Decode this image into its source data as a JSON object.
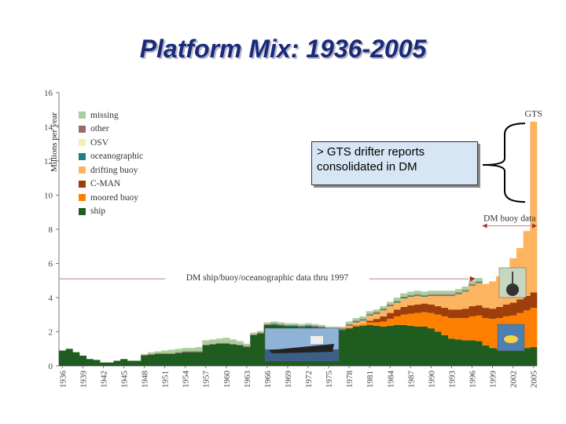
{
  "title": "Platform Mix: 1936-2005",
  "note": "> GTS drifter reports consolidated in DM",
  "chart_data": {
    "type": "area",
    "stacked": true,
    "ylabel": "Millions per year",
    "xlabel": "",
    "ylim": [
      0,
      16
    ],
    "yticks": [
      0,
      2,
      4,
      6,
      8,
      10,
      12,
      14,
      16
    ],
    "xticks": [
      "1936",
      "1939",
      "1942",
      "1945",
      "1948",
      "1951",
      "1954",
      "1957",
      "1960",
      "1963",
      "1966",
      "1969",
      "1972",
      "1975",
      "1978",
      "1981",
      "1984",
      "1987",
      "1990",
      "1993",
      "1996",
      "1999",
      "2002",
      "2005"
    ],
    "years": [
      1936,
      1937,
      1938,
      1939,
      1940,
      1941,
      1942,
      1943,
      1944,
      1945,
      1946,
      1947,
      1948,
      1949,
      1950,
      1951,
      1952,
      1953,
      1954,
      1955,
      1956,
      1957,
      1958,
      1959,
      1960,
      1961,
      1962,
      1963,
      1964,
      1965,
      1966,
      1967,
      1968,
      1969,
      1970,
      1971,
      1972,
      1973,
      1974,
      1975,
      1976,
      1977,
      1978,
      1979,
      1980,
      1981,
      1982,
      1983,
      1984,
      1985,
      1986,
      1987,
      1988,
      1989,
      1990,
      1991,
      1992,
      1993,
      1994,
      1995,
      1996,
      1997,
      1998,
      1999,
      2000,
      2001,
      2002,
      2003,
      2004,
      2005
    ],
    "series": [
      {
        "name": "ship",
        "color": "#1f5c1f",
        "values": [
          0.9,
          1.0,
          0.8,
          0.6,
          0.4,
          0.35,
          0.2,
          0.2,
          0.3,
          0.4,
          0.3,
          0.3,
          0.6,
          0.65,
          0.7,
          0.7,
          0.7,
          0.75,
          0.8,
          0.8,
          0.8,
          1.2,
          1.25,
          1.3,
          1.3,
          1.25,
          1.2,
          1.1,
          1.8,
          1.9,
          2.4,
          2.4,
          2.35,
          2.3,
          2.3,
          2.25,
          2.3,
          2.25,
          2.2,
          2.1,
          2.1,
          2.1,
          2.2,
          2.3,
          2.35,
          2.4,
          2.35,
          2.3,
          2.35,
          2.4,
          2.4,
          2.35,
          2.3,
          2.3,
          2.2,
          2.0,
          1.8,
          1.6,
          1.55,
          1.5,
          1.5,
          1.45,
          1.2,
          1.05,
          1.0,
          1.0,
          0.95,
          1.0,
          1.05,
          1.1
        ]
      },
      {
        "name": "moored buoy",
        "color": "#ff8000",
        "values": [
          0,
          0,
          0,
          0,
          0,
          0,
          0,
          0,
          0,
          0,
          0,
          0,
          0,
          0,
          0,
          0,
          0,
          0,
          0,
          0,
          0,
          0,
          0,
          0,
          0,
          0,
          0,
          0,
          0,
          0,
          0,
          0,
          0,
          0,
          0,
          0,
          0,
          0,
          0,
          0,
          0,
          0,
          0.05,
          0.1,
          0.1,
          0.15,
          0.2,
          0.3,
          0.4,
          0.5,
          0.6,
          0.7,
          0.8,
          0.85,
          0.9,
          1.0,
          1.1,
          1.2,
          1.25,
          1.3,
          1.4,
          1.5,
          1.6,
          1.7,
          1.8,
          1.9,
          2.0,
          2.1,
          2.2,
          2.3
        ]
      },
      {
        "name": "C-MAN",
        "color": "#9e3e0a",
        "values": [
          0,
          0,
          0,
          0,
          0,
          0,
          0,
          0,
          0,
          0,
          0,
          0,
          0,
          0,
          0,
          0,
          0,
          0,
          0,
          0,
          0,
          0,
          0,
          0,
          0,
          0,
          0,
          0,
          0,
          0,
          0,
          0,
          0,
          0,
          0,
          0,
          0,
          0,
          0,
          0,
          0,
          0,
          0,
          0,
          0,
          0.1,
          0.2,
          0.3,
          0.35,
          0.4,
          0.45,
          0.5,
          0.5,
          0.5,
          0.5,
          0.5,
          0.5,
          0.5,
          0.5,
          0.55,
          0.6,
          0.6,
          0.6,
          0.6,
          0.65,
          0.7,
          0.75,
          0.8,
          0.85,
          0.9
        ]
      },
      {
        "name": "drifting buoy",
        "color": "#fdb460",
        "values": [
          0,
          0,
          0,
          0,
          0,
          0,
          0,
          0,
          0,
          0,
          0,
          0,
          0,
          0,
          0,
          0,
          0,
          0,
          0,
          0,
          0,
          0,
          0,
          0,
          0,
          0,
          0,
          0,
          0,
          0,
          0,
          0,
          0,
          0,
          0,
          0,
          0,
          0,
          0,
          0,
          0,
          0,
          0.1,
          0.15,
          0.2,
          0.3,
          0.3,
          0.35,
          0.4,
          0.4,
          0.5,
          0.5,
          0.5,
          0.4,
          0.5,
          0.6,
          0.7,
          0.8,
          0.9,
          1.0,
          1.2,
          1.3,
          1.4,
          1.6,
          1.8,
          2.0,
          2.6,
          3.0,
          3.8,
          10.0
        ]
      },
      {
        "name": "oceanographic",
        "color": "#1e8080",
        "values": [
          0,
          0,
          0,
          0,
          0,
          0,
          0,
          0,
          0,
          0,
          0,
          0,
          0,
          0,
          0,
          0,
          0,
          0,
          0,
          0,
          0,
          0,
          0,
          0,
          0,
          0,
          0,
          0,
          0,
          0,
          0,
          0.05,
          0.05,
          0.05,
          0.05,
          0.05,
          0.05,
          0.05,
          0.05,
          0.05,
          0.05,
          0.05,
          0.05,
          0.05,
          0.05,
          0.05,
          0.05,
          0.05,
          0.05,
          0.05,
          0.05,
          0.05,
          0.05,
          0.05,
          0.05,
          0.05,
          0.05,
          0.05,
          0.05,
          0.05,
          0.05,
          0.05,
          0,
          0,
          0,
          0,
          0,
          0,
          0,
          0
        ]
      },
      {
        "name": "OSV",
        "color": "#f2f2b0",
        "values": [
          0,
          0,
          0,
          0,
          0,
          0,
          0,
          0,
          0,
          0,
          0,
          0,
          0,
          0,
          0,
          0,
          0,
          0,
          0,
          0,
          0,
          0,
          0,
          0,
          0,
          0,
          0,
          0,
          0,
          0,
          0,
          0,
          0,
          0,
          0,
          0,
          0,
          0,
          0,
          0,
          0,
          0,
          0,
          0,
          0,
          0,
          0,
          0,
          0,
          0,
          0,
          0,
          0,
          0,
          0,
          0,
          0,
          0,
          0,
          0,
          0,
          0,
          0,
          0,
          0,
          0,
          0,
          0,
          0,
          0
        ]
      },
      {
        "name": "other",
        "color": "#9b6b6b",
        "values": [
          0,
          0,
          0,
          0,
          0,
          0,
          0,
          0,
          0,
          0,
          0,
          0,
          0.05,
          0.05,
          0.05,
          0.05,
          0.05,
          0.05,
          0.05,
          0.05,
          0.05,
          0.05,
          0.05,
          0.05,
          0.05,
          0.05,
          0.05,
          0.05,
          0.05,
          0.05,
          0.05,
          0.05,
          0.05,
          0.05,
          0.05,
          0.05,
          0.05,
          0.05,
          0.05,
          0.05,
          0.05,
          0.05,
          0.05,
          0.05,
          0.05,
          0.05,
          0.05,
          0.05,
          0.05,
          0.05,
          0.05,
          0.05,
          0.05,
          0.05,
          0.05,
          0.05,
          0.05,
          0.05,
          0.05,
          0.05,
          0.05,
          0.05,
          0,
          0,
          0,
          0,
          0,
          0,
          0,
          0
        ]
      },
      {
        "name": "missing",
        "color": "#a9cf9b",
        "values": [
          0,
          0,
          0,
          0,
          0,
          0,
          0,
          0,
          0,
          0,
          0,
          0,
          0.05,
          0.1,
          0.1,
          0.15,
          0.2,
          0.2,
          0.2,
          0.2,
          0.25,
          0.25,
          0.25,
          0.25,
          0.3,
          0.25,
          0.2,
          0.15,
          0.1,
          0.1,
          0.1,
          0.1,
          0.1,
          0.1,
          0.1,
          0.1,
          0.1,
          0.1,
          0.1,
          0.1,
          0.1,
          0.1,
          0.15,
          0.15,
          0.15,
          0.15,
          0.15,
          0.15,
          0.15,
          0.2,
          0.2,
          0.2,
          0.2,
          0.2,
          0.2,
          0.2,
          0.2,
          0.2,
          0.2,
          0.2,
          0.2,
          0.2,
          0,
          0,
          0,
          0,
          0,
          0,
          0,
          0
        ]
      }
    ],
    "legend": [
      "missing",
      "other",
      "OSV",
      "oceanographic",
      "drifting buoy",
      "C-MAN",
      "moored buoy",
      "ship"
    ],
    "annotations": [
      {
        "text": "DM ship/buoy/oceanographic data thru 1997",
        "y": 5.1,
        "x_start": 1936,
        "x_end": 1997
      },
      {
        "text": "DM buoy data",
        "y": 8.2,
        "x_start": 1998,
        "x_end": 2005
      },
      {
        "text": "GTS",
        "x": 2005
      }
    ]
  },
  "colors": {
    "title": "#1a2a7a",
    "note_bg": "#d6e6f4"
  }
}
